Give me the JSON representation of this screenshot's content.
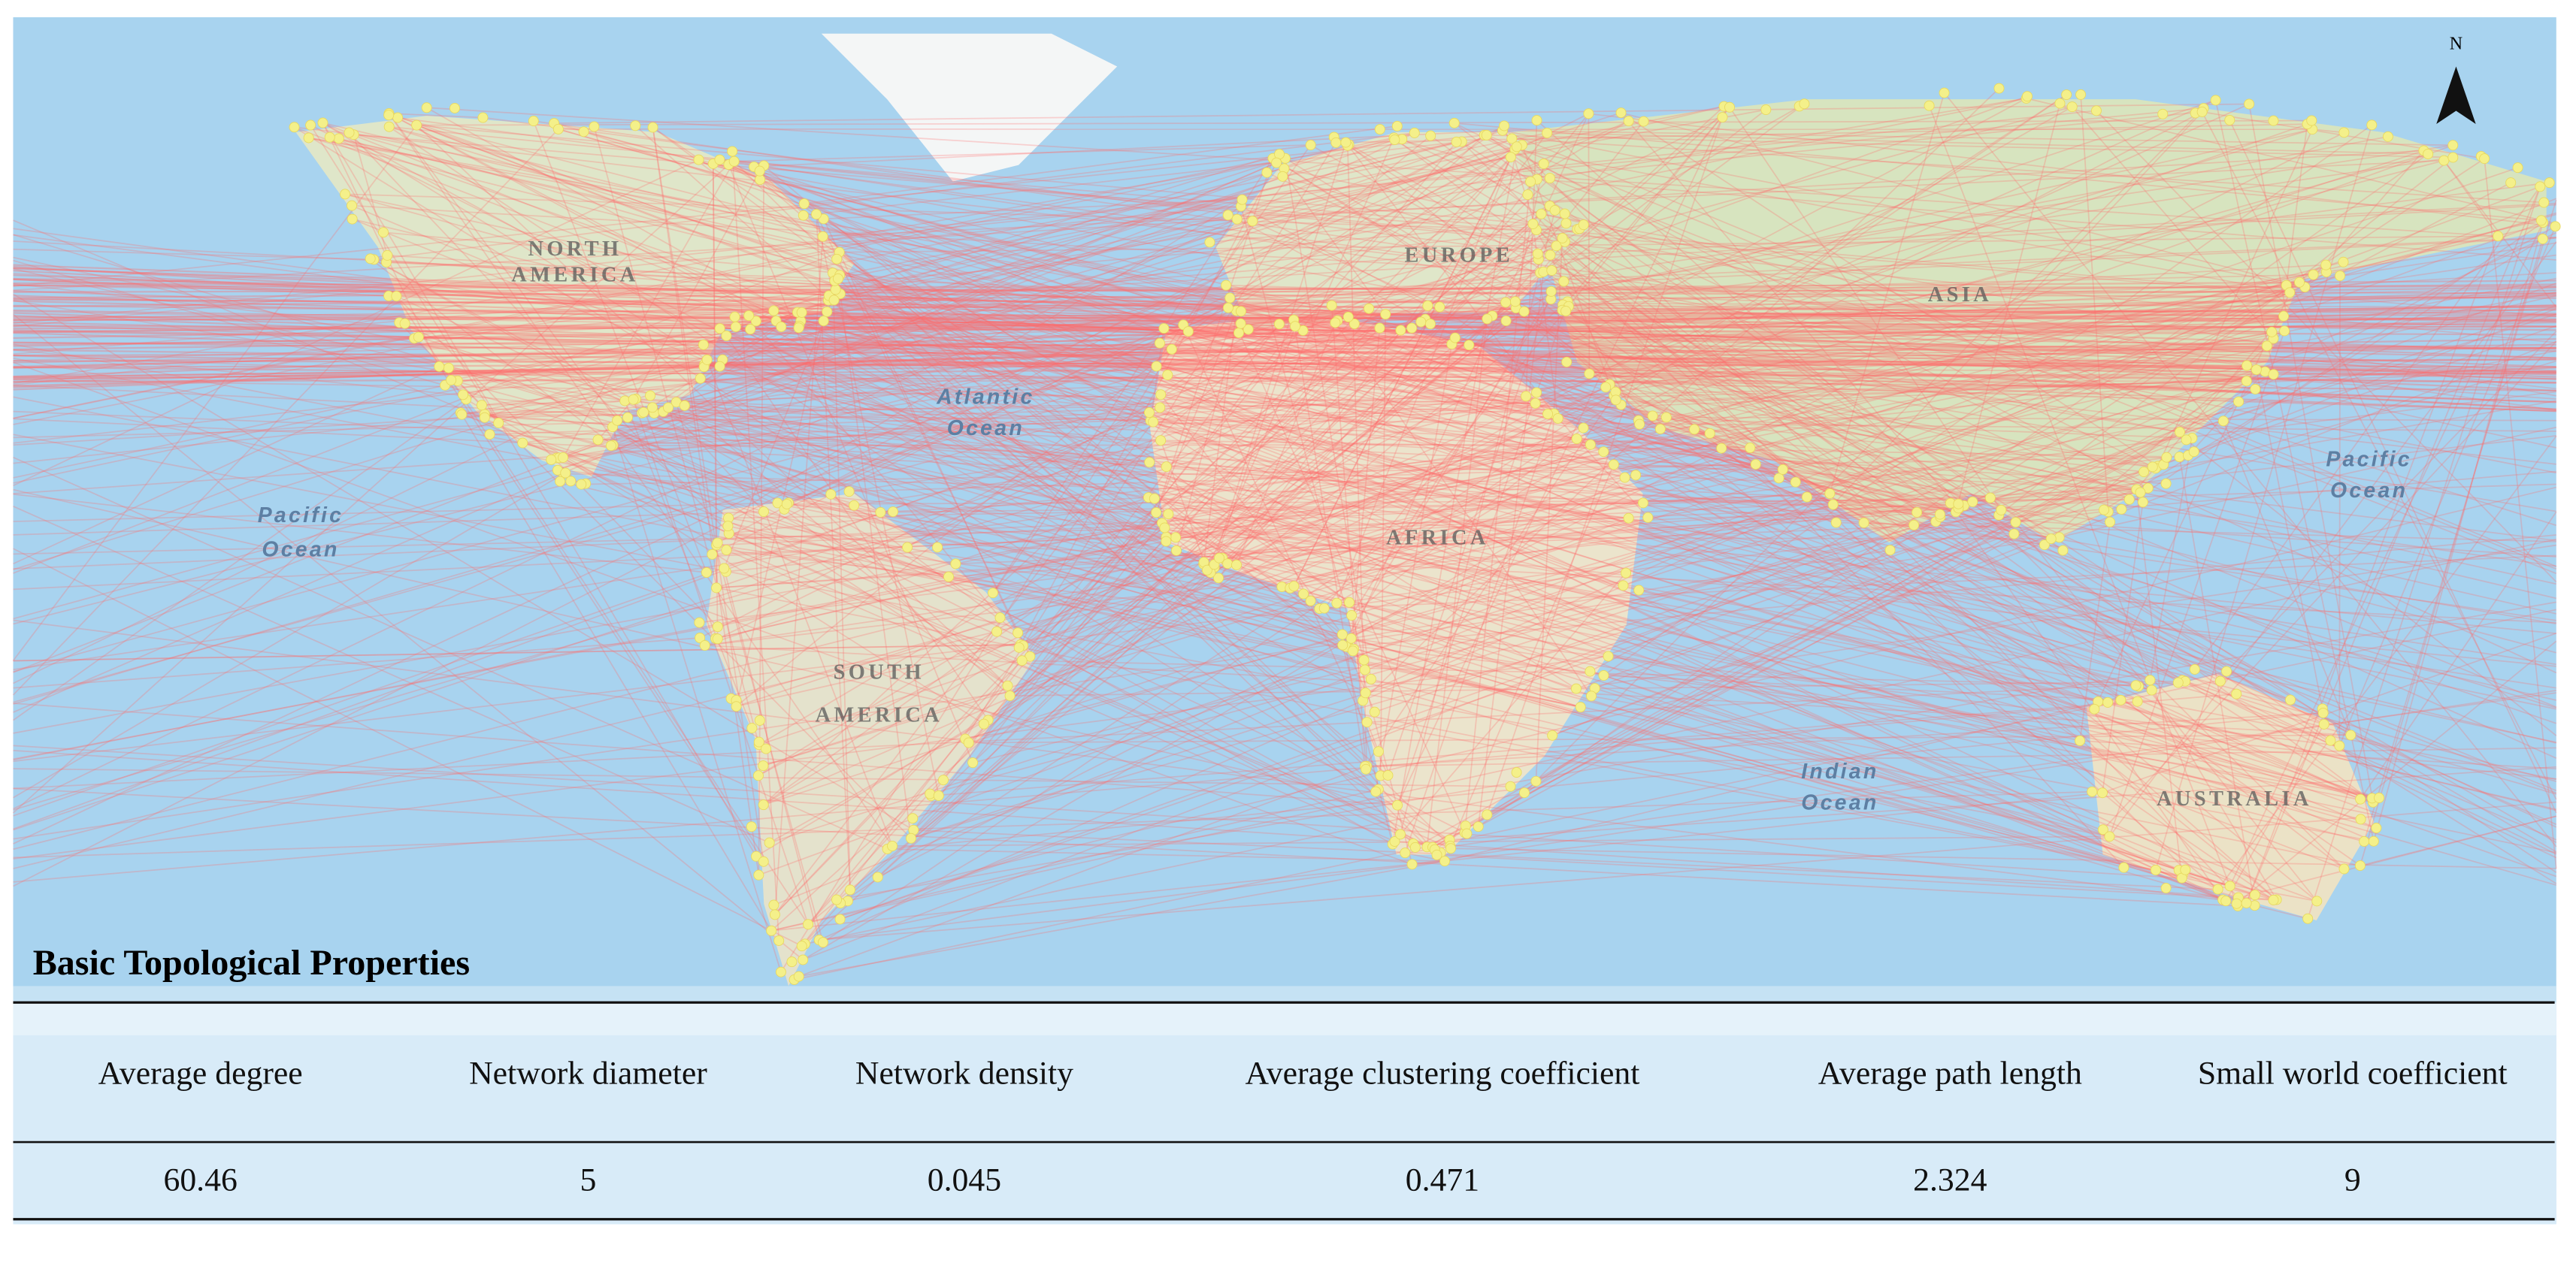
{
  "map": {
    "north_label": "N",
    "labels": [
      "NORTH",
      "AMERICA",
      "SOUTH",
      "AMERICA",
      "EUROPE",
      "AFRICA",
      "ASIA",
      "AUSTRALIA",
      "Pacific",
      "Ocean",
      "Atlantic",
      "Ocean",
      "Pacific",
      "Ocean",
      "Indian",
      "Ocean"
    ]
  },
  "table": {
    "title": "Basic Topological Properties",
    "header": [
      "Average degree",
      "Network diameter",
      "Network density",
      "Average clustering coefficient",
      "Average path length",
      "Small world coefficient"
    ],
    "rows": [
      [
        60.46,
        5,
        0.045,
        0.471,
        2.324,
        9
      ]
    ]
  }
}
